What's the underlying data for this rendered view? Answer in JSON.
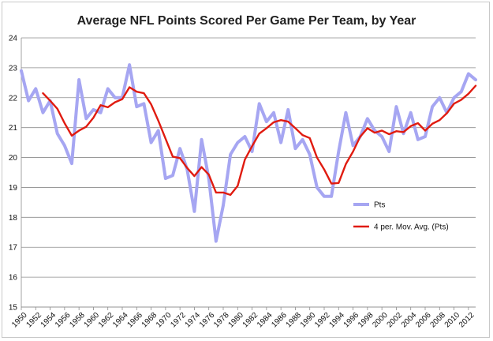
{
  "chart_data": {
    "type": "line",
    "title": "Average NFL Points Scored Per Game Per Team, by Year",
    "xlabel": "",
    "ylabel": "",
    "ylim": [
      15,
      24
    ],
    "xlim": [
      1950,
      2013
    ],
    "yticks": [
      15,
      16,
      17,
      18,
      19,
      20,
      21,
      22,
      23,
      24
    ],
    "xticks": [
      1950,
      1952,
      1954,
      1956,
      1958,
      1960,
      1962,
      1964,
      1966,
      1968,
      1970,
      1972,
      1974,
      1976,
      1978,
      1980,
      1982,
      1984,
      1986,
      1988,
      1990,
      1992,
      1994,
      1996,
      1998,
      2000,
      2002,
      2004,
      2006,
      2008,
      2010,
      2012
    ],
    "grid": "horizontal",
    "legend_position": "right",
    "x": [
      1950,
      1951,
      1952,
      1953,
      1954,
      1955,
      1956,
      1957,
      1958,
      1959,
      1960,
      1961,
      1962,
      1963,
      1964,
      1965,
      1966,
      1967,
      1968,
      1969,
      1970,
      1971,
      1972,
      1973,
      1974,
      1975,
      1976,
      1977,
      1978,
      1979,
      1980,
      1981,
      1982,
      1983,
      1984,
      1985,
      1986,
      1987,
      1988,
      1989,
      1990,
      1991,
      1992,
      1993,
      1994,
      1995,
      1996,
      1997,
      1998,
      1999,
      2000,
      2001,
      2002,
      2003,
      2004,
      2005,
      2006,
      2007,
      2008,
      2009,
      2010,
      2011,
      2012,
      2013
    ],
    "series": [
      {
        "name": "Pts",
        "color": "#a6a6f2",
        "values": [
          22.9,
          21.9,
          22.3,
          21.5,
          21.9,
          20.8,
          20.4,
          19.8,
          22.6,
          21.3,
          21.6,
          21.5,
          22.3,
          22.0,
          22.0,
          23.1,
          21.7,
          21.8,
          20.5,
          20.9,
          19.3,
          19.4,
          20.3,
          19.6,
          18.2,
          20.6,
          19.3,
          17.2,
          18.4,
          20.1,
          20.5,
          20.7,
          20.2,
          21.8,
          21.2,
          21.5,
          20.5,
          21.6,
          20.3,
          20.6,
          20.1,
          19.0,
          18.7,
          18.7,
          20.2,
          21.5,
          20.4,
          20.7,
          21.3,
          20.9,
          20.7,
          20.2,
          21.7,
          20.8,
          21.5,
          20.6,
          20.7,
          21.7,
          22.0,
          21.5,
          22.0,
          22.2,
          22.8,
          22.6
        ]
      },
      {
        "name": "4 per. Mov. Avg. (Pts)",
        "color": "#e01b10",
        "values": [
          null,
          null,
          null,
          22.15,
          21.9,
          21.63,
          21.15,
          20.73,
          20.9,
          21.03,
          21.33,
          21.75,
          21.68,
          21.85,
          21.95,
          22.35,
          22.2,
          22.15,
          21.78,
          21.23,
          20.63,
          20.03,
          19.98,
          19.65,
          19.38,
          19.68,
          19.43,
          18.83,
          18.83,
          18.75,
          19.05,
          19.93,
          20.38,
          20.8,
          20.98,
          21.18,
          21.25,
          21.2,
          20.98,
          20.75,
          20.65,
          20.0,
          19.6,
          19.13,
          19.15,
          19.78,
          20.2,
          20.7,
          20.98,
          20.83,
          20.9,
          20.78,
          20.88,
          20.85,
          21.05,
          21.15,
          20.9,
          21.13,
          21.25,
          21.48,
          21.8,
          21.93,
          22.13,
          22.4
        ]
      }
    ]
  }
}
